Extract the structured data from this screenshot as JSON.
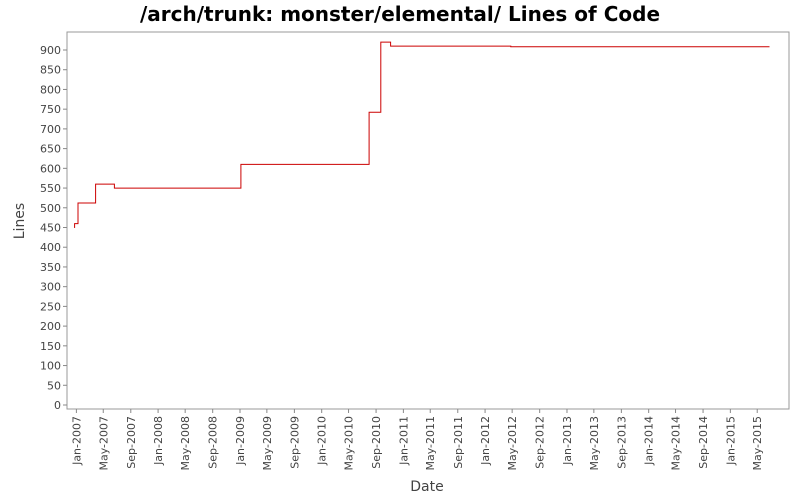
{
  "chart_data": {
    "type": "line",
    "title": "/arch/trunk: monster/elemental/ Lines of Code",
    "xlabel": "Date",
    "ylabel": "Lines",
    "ylim": [
      0,
      925
    ],
    "xlim": [
      "2006-11-20",
      "2015-09-20"
    ],
    "y_ticks": [
      0,
      50,
      100,
      150,
      200,
      250,
      300,
      350,
      400,
      450,
      500,
      550,
      600,
      650,
      700,
      750,
      800,
      850,
      900
    ],
    "x_ticks": [
      {
        "date": "2007-01-01",
        "label": "Jan-2007"
      },
      {
        "date": "2007-05-01",
        "label": "May-2007"
      },
      {
        "date": "2007-09-01",
        "label": "Sep-2007"
      },
      {
        "date": "2008-01-01",
        "label": "Jan-2008"
      },
      {
        "date": "2008-05-01",
        "label": "May-2008"
      },
      {
        "date": "2008-09-01",
        "label": "Sep-2008"
      },
      {
        "date": "2009-01-01",
        "label": "Jan-2009"
      },
      {
        "date": "2009-05-01",
        "label": "May-2009"
      },
      {
        "date": "2009-09-01",
        "label": "Sep-2009"
      },
      {
        "date": "2010-01-01",
        "label": "Jan-2010"
      },
      {
        "date": "2010-05-01",
        "label": "May-2010"
      },
      {
        "date": "2010-09-01",
        "label": "Sep-2010"
      },
      {
        "date": "2011-01-01",
        "label": "Jan-2011"
      },
      {
        "date": "2011-05-01",
        "label": "May-2011"
      },
      {
        "date": "2011-09-01",
        "label": "Sep-2011"
      },
      {
        "date": "2012-01-01",
        "label": "Jan-2012"
      },
      {
        "date": "2012-05-01",
        "label": "May-2012"
      },
      {
        "date": "2012-09-01",
        "label": "Sep-2012"
      },
      {
        "date": "2013-01-01",
        "label": "Jan-2013"
      },
      {
        "date": "2013-05-01",
        "label": "May-2013"
      },
      {
        "date": "2013-09-01",
        "label": "Sep-2013"
      },
      {
        "date": "2014-01-01",
        "label": "Jan-2014"
      },
      {
        "date": "2014-05-01",
        "label": "May-2014"
      },
      {
        "date": "2014-09-01",
        "label": "Sep-2014"
      },
      {
        "date": "2015-01-01",
        "label": "Jan-2015"
      },
      {
        "date": "2015-05-01",
        "label": "May-2015"
      }
    ],
    "grid": false,
    "line_color": "#cc0000",
    "series": [
      {
        "step": true,
        "points": [
          {
            "x": "2006-12-22",
            "y": 450
          },
          {
            "x": "2006-12-24",
            "y": 460
          },
          {
            "x": "2007-01-08",
            "y": 512
          },
          {
            "x": "2007-03-28",
            "y": 560
          },
          {
            "x": "2007-06-20",
            "y": 550
          },
          {
            "x": "2009-01-05",
            "y": 610
          },
          {
            "x": "2010-08-01",
            "y": 742
          },
          {
            "x": "2010-09-22",
            "y": 920
          },
          {
            "x": "2010-11-05",
            "y": 910
          },
          {
            "x": "2012-04-25",
            "y": 908
          },
          {
            "x": "2015-06-25",
            "y": 908
          }
        ]
      }
    ]
  }
}
